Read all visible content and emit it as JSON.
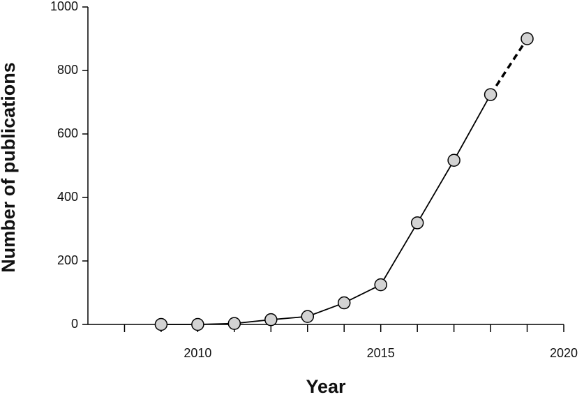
{
  "chart_data": {
    "type": "line",
    "x": [
      2009,
      2010,
      2011,
      2012,
      2013,
      2014,
      2015,
      2016,
      2017,
      2018,
      2019
    ],
    "values": [
      0,
      0,
      3,
      15,
      25,
      68,
      125,
      320,
      517,
      724,
      900
    ],
    "color": "#000000",
    "marker_fill": "#d3d3d3",
    "last_segment_style": "dashed",
    "x_label": "Year",
    "y_label": "Number of publications",
    "xlim": [
      2007,
      2020
    ],
    "xticks": [
      2010,
      2015,
      2020
    ],
    "xminorticks": [
      2008,
      2009,
      2011,
      2012,
      2013,
      2014,
      2016,
      2017,
      2018,
      2019
    ],
    "ylim": [
      0,
      1000
    ],
    "yticks": [
      0,
      200,
      400,
      600,
      800,
      1000
    ]
  }
}
